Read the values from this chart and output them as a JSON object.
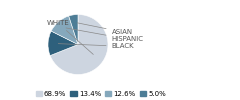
{
  "labels": [
    "WHITE",
    "BLACK",
    "HISPANIC",
    "ASIAN"
  ],
  "values": [
    68.9,
    13.4,
    12.6,
    5.0
  ],
  "colors": [
    "#cdd5e0",
    "#2e607c",
    "#85a8bc",
    "#4d7d96"
  ],
  "legend_labels": [
    "68.9%",
    "13.4%",
    "12.6%",
    "5.0%"
  ],
  "legend_colors": [
    "#cdd5e0",
    "#2e607c",
    "#85a8bc",
    "#4d7d96"
  ],
  "label_fontsize": 5.0,
  "legend_fontsize": 5.0,
  "text_color": "#555555",
  "line_color": "#888888"
}
